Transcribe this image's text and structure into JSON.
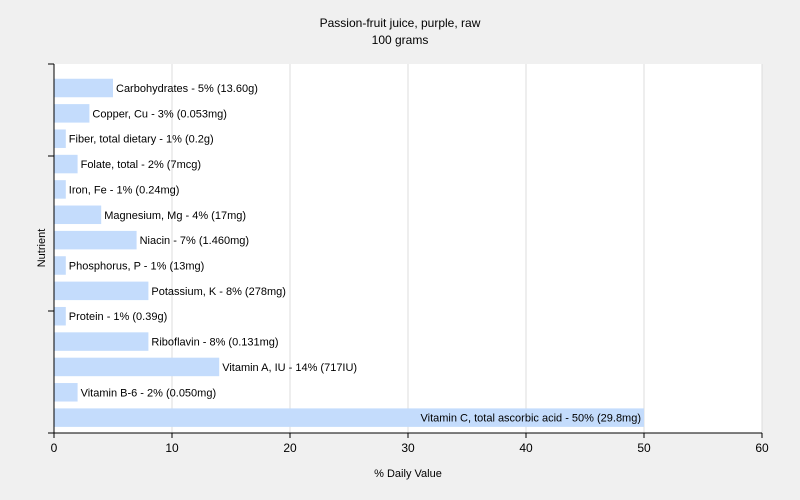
{
  "chart_data": {
    "type": "bar",
    "orientation": "horizontal",
    "title": "Passion-fruit juice, purple, raw",
    "subtitle": "100 grams",
    "xlabel": "% Daily Value",
    "ylabel": "Nutrient",
    "xlim": [
      0,
      60
    ],
    "xticks": [
      0,
      10,
      20,
      30,
      40,
      50,
      60
    ],
    "grid": true,
    "bar_color": "#c4dcfc",
    "categories": [
      "Carbohydrates",
      "Copper, Cu",
      "Fiber, total dietary",
      "Folate, total",
      "Iron, Fe",
      "Magnesium, Mg",
      "Niacin",
      "Phosphorus, P",
      "Potassium, K",
      "Protein",
      "Riboflavin",
      "Vitamin A, IU",
      "Vitamin B-6",
      "Vitamin C, total ascorbic acid"
    ],
    "values": [
      5,
      3,
      1,
      2,
      1,
      4,
      7,
      1,
      8,
      1,
      8,
      14,
      2,
      50
    ],
    "labels": [
      "Carbohydrates - 5% (13.60g)",
      "Copper, Cu - 3% (0.053mg)",
      "Fiber, total dietary - 1% (0.2g)",
      "Folate, total - 2% (7mcg)",
      "Iron, Fe - 1% (0.24mg)",
      "Magnesium, Mg - 4% (17mg)",
      "Niacin - 7% (1.460mg)",
      "Phosphorus, P - 1% (13mg)",
      "Potassium, K - 8% (278mg)",
      "Protein - 1% (0.39g)",
      "Riboflavin - 8% (0.131mg)",
      "Vitamin A, IU - 14% (717IU)",
      "Vitamin B-6 - 2% (0.050mg)",
      "Vitamin C, total ascorbic acid - 50% (29.8mg)"
    ]
  }
}
